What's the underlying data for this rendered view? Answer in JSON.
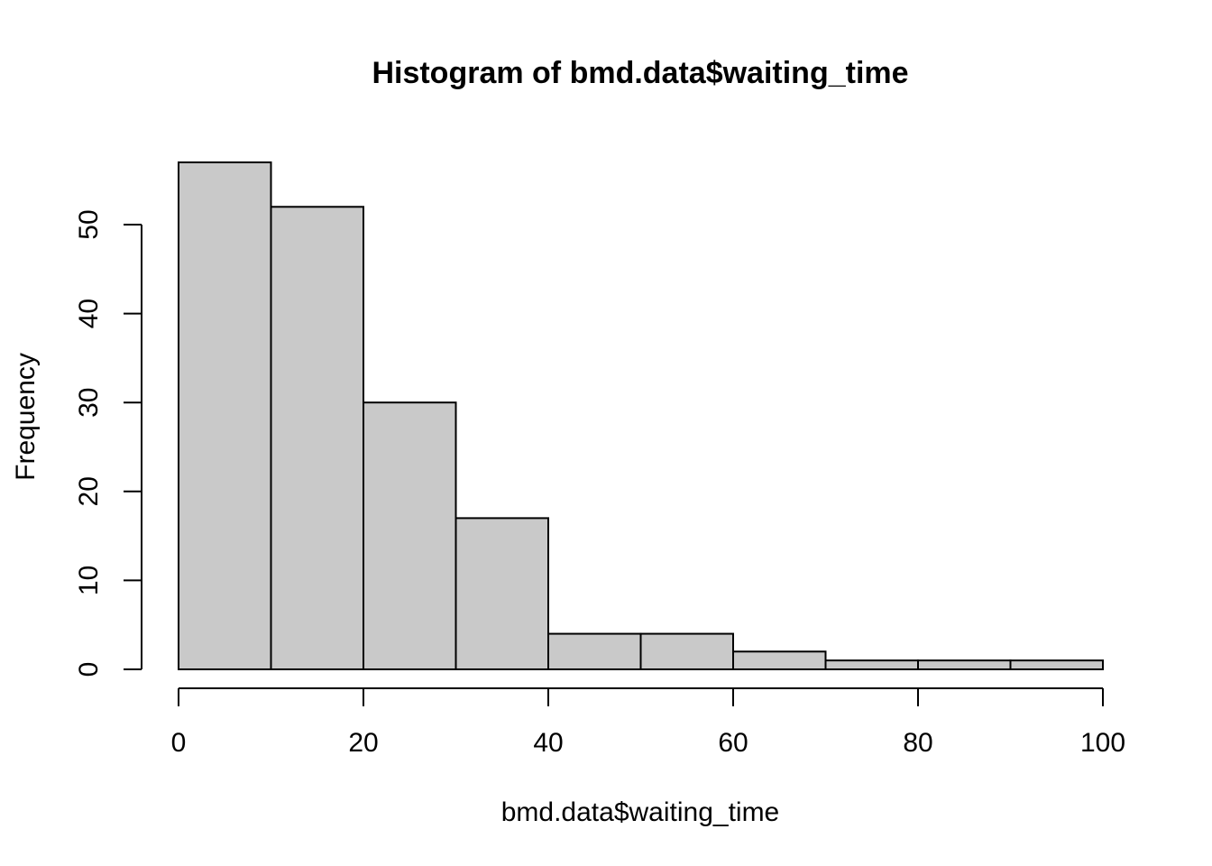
{
  "chart_data": {
    "type": "bar",
    "subtype": "histogram",
    "title": "Histogram of bmd.data$waiting_time",
    "xlabel": "bmd.data$waiting_time",
    "ylabel": "Frequency",
    "bin_edges": [
      0,
      10,
      20,
      30,
      40,
      50,
      60,
      70,
      80,
      90,
      100
    ],
    "categories": [
      "0-10",
      "10-20",
      "20-30",
      "30-40",
      "40-50",
      "50-60",
      "60-70",
      "70-80",
      "80-90",
      "90-100"
    ],
    "values": [
      57,
      52,
      30,
      17,
      4,
      4,
      2,
      1,
      1,
      1
    ],
    "x_ticks": [
      0,
      20,
      40,
      60,
      80,
      100
    ],
    "y_ticks": [
      0,
      10,
      20,
      30,
      40,
      50
    ],
    "xlim": [
      0,
      100
    ],
    "ylim": [
      0,
      57
    ],
    "grid": false,
    "legend": false,
    "bar_fill": "#c9c9c9",
    "bar_stroke": "#000000",
    "axis_color": "#000000",
    "background": "#ffffff"
  }
}
